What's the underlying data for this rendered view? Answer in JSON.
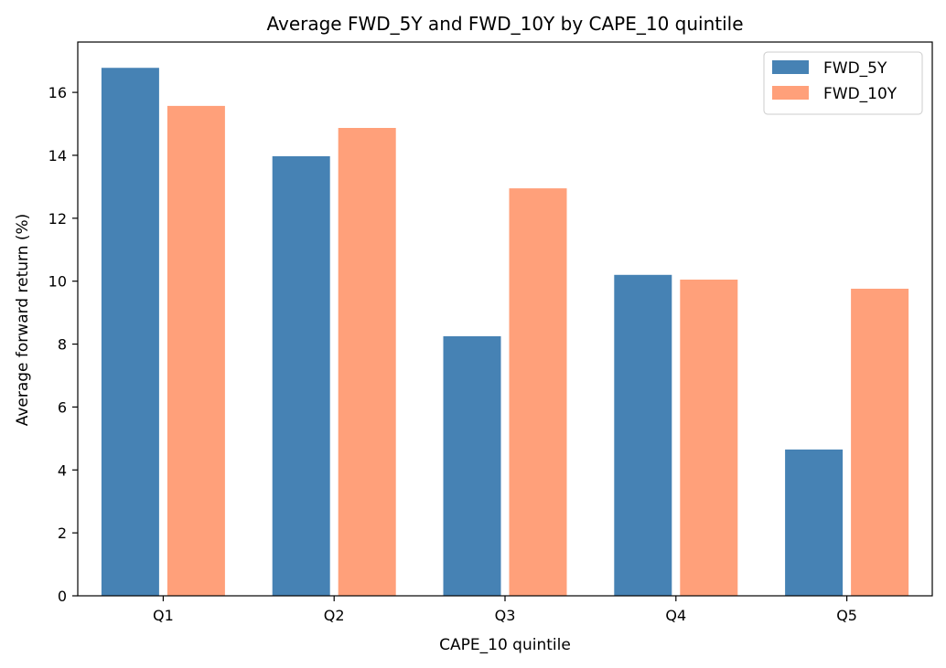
{
  "chart_data": {
    "type": "bar",
    "title": "Average FWD_5Y and FWD_10Y by CAPE_10 quintile",
    "xlabel": "CAPE_10 quintile",
    "ylabel": "Average forward return (%)",
    "categories": [
      "Q1",
      "Q2",
      "Q3",
      "Q4",
      "Q5"
    ],
    "series": [
      {
        "name": "FWD_5Y",
        "color": "#4682b4",
        "values": [
          16.78,
          13.97,
          8.25,
          10.2,
          4.65
        ]
      },
      {
        "name": "FWD_10Y",
        "color": "#ffa07a",
        "values": [
          15.57,
          14.87,
          12.95,
          10.05,
          9.76
        ]
      }
    ],
    "ylim": [
      0,
      17.6
    ],
    "yticks": [
      "0",
      "2",
      "4",
      "6",
      "8",
      "10",
      "12",
      "14",
      "16"
    ],
    "grid": false,
    "legend_position": "top-right"
  }
}
